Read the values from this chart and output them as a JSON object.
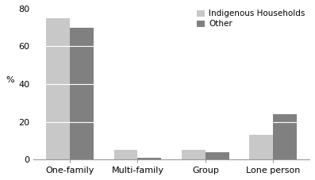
{
  "categories": [
    "One-family",
    "Multi-family",
    "Group",
    "Lone person"
  ],
  "indigenous": [
    75,
    5,
    5,
    13
  ],
  "other": [
    70,
    1,
    4,
    24
  ],
  "indigenous_color": "#c8c8c8",
  "other_color": "#808080",
  "ylabel": "%",
  "ylim": [
    0,
    80
  ],
  "yticks": [
    0,
    20,
    40,
    60,
    80
  ],
  "legend_labels": [
    "Indigenous Households",
    "Other"
  ],
  "bar_width": 0.35,
  "gridlines": [
    20,
    40,
    60,
    80
  ]
}
